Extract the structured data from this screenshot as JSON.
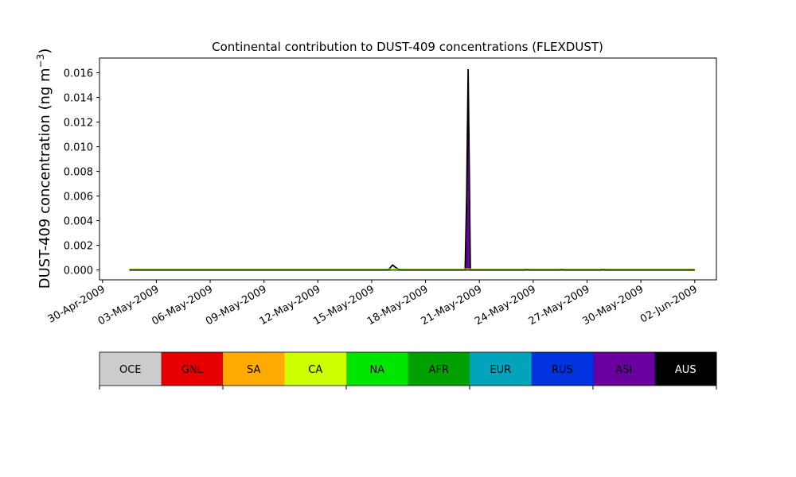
{
  "chart_data": {
    "type": "area",
    "title": "Continental contribution to DUST-409 concentrations (FLEXDUST)",
    "ylabel_text": "DUST-409 concentration (ng m",
    "ylabel_sup": "−3",
    "ylabel_close": ")",
    "xlabel": "",
    "x_tick_labels": [
      "30-Apr-2009",
      "03-May-2009",
      "06-May-2009",
      "09-May-2009",
      "12-May-2009",
      "15-May-2009",
      "18-May-2009",
      "21-May-2009",
      "24-May-2009",
      "27-May-2009",
      "30-May-2009",
      "02-Jun-2009"
    ],
    "y_ticks": [
      0.0,
      0.002,
      0.004,
      0.006,
      0.008,
      0.01,
      0.012,
      0.014,
      0.016
    ],
    "y_tick_labels": [
      "0.000",
      "0.002",
      "0.004",
      "0.006",
      "0.008",
      "0.010",
      "0.012",
      "0.014",
      "0.016"
    ],
    "xlim": [
      "2009-04-29T20:00",
      "2009-06-03T05:00"
    ],
    "ylim": [
      -0.0008,
      0.0172
    ],
    "data_start": "2009-05-01T12:00",
    "data_end": "2009-06-02T00:00",
    "series": [
      {
        "name": "OCE",
        "color": "#cccccc",
        "points": []
      },
      {
        "name": "GNL",
        "color": "#e60000",
        "points": []
      },
      {
        "name": "SA",
        "color": "#ffaa00",
        "points": []
      },
      {
        "name": "CA",
        "color": "#ccff00",
        "points": []
      },
      {
        "name": "NA",
        "color": "#00e600",
        "points": [
          [
            "2009-05-16T00:00",
            0.0
          ],
          [
            "2009-05-16T06:00",
            0.0001
          ],
          [
            "2009-05-16T12:00",
            0.0
          ]
        ]
      },
      {
        "name": "AFR",
        "color": "#00a000",
        "points": []
      },
      {
        "name": "EUR",
        "color": "#00a5bb",
        "points": []
      },
      {
        "name": "RUS",
        "color": "#0033dd",
        "points": []
      },
      {
        "name": "ASI",
        "color": "#6a00a0",
        "points": [
          [
            "2009-05-20T05:00",
            0.0
          ],
          [
            "2009-05-20T07:00",
            0.0045
          ],
          [
            "2009-05-20T08:00",
            0.0115
          ],
          [
            "2009-05-20T09:00",
            0.0145
          ],
          [
            "2009-05-20T10:00",
            0.009
          ],
          [
            "2009-05-20T12:00",
            0.0
          ]
        ]
      },
      {
        "name": "AUS",
        "color": "#000000",
        "points": []
      }
    ],
    "total": [
      [
        "2009-05-01T12:00",
        0.0
      ],
      [
        "2009-05-15T22:00",
        0.0
      ],
      [
        "2009-05-16T04:00",
        0.0004
      ],
      [
        "2009-05-16T08:00",
        0.0002
      ],
      [
        "2009-05-16T14:00",
        0.0
      ],
      [
        "2009-05-20T05:00",
        0.0
      ],
      [
        "2009-05-20T07:00",
        0.006
      ],
      [
        "2009-05-20T09:00",
        0.0163
      ],
      [
        "2009-05-20T10:00",
        0.011
      ],
      [
        "2009-05-20T12:00",
        0.0
      ],
      [
        "2009-05-23T12:00",
        0.0
      ],
      [
        "2009-05-23T15:00",
        4e-05
      ],
      [
        "2009-05-23T18:00",
        0.0
      ],
      [
        "2009-05-25T12:00",
        0.0
      ],
      [
        "2009-05-25T15:00",
        4e-05
      ],
      [
        "2009-05-25T18:00",
        0.0
      ],
      [
        "2009-05-27T18:00",
        0.0
      ],
      [
        "2009-05-27T21:00",
        5e-05
      ],
      [
        "2009-05-28T00:00",
        0.0
      ],
      [
        "2009-06-02T00:00",
        0.0
      ]
    ],
    "grid": false,
    "legend_position": "bottom colorbar"
  }
}
